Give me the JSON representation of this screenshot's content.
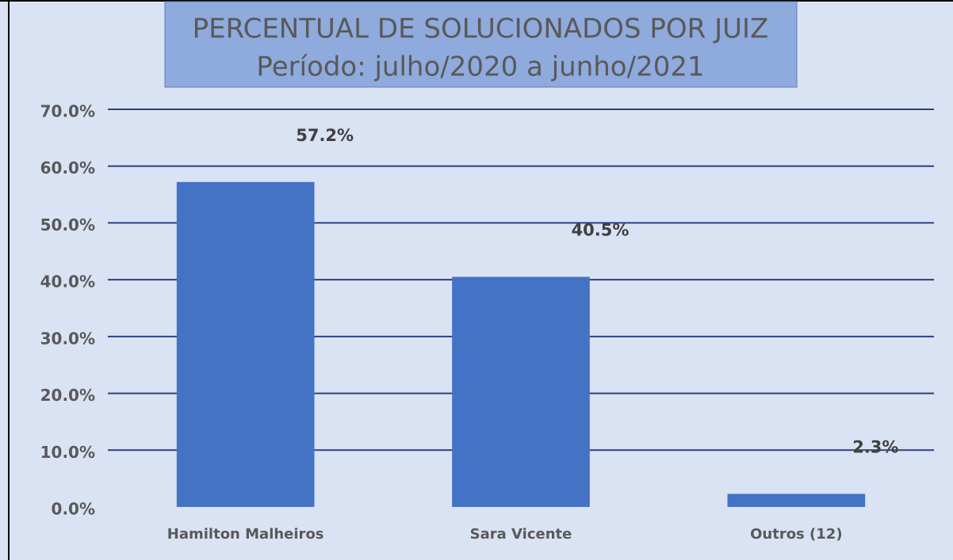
{
  "chart_data": {
    "type": "bar",
    "title": "PERCENTUAL DE SOLUCIONADOS POR JUIZ",
    "subtitle": "Período: julho/2020 a junho/2021",
    "categories": [
      "Hamilton Malheiros",
      "Sara Vicente",
      "Outros (12)"
    ],
    "values": [
      57.2,
      40.5,
      2.3
    ],
    "value_labels": [
      "57.2%",
      "40.5%",
      "2.3%"
    ],
    "color": "#4472c4",
    "ylim": [
      0,
      70
    ],
    "yticks": [
      {
        "value": 0,
        "label": "0.0%"
      },
      {
        "value": 10,
        "label": "10.0%"
      },
      {
        "value": 20,
        "label": "20.0%"
      },
      {
        "value": 30,
        "label": "30.0%"
      },
      {
        "value": 40,
        "label": "40.0%"
      },
      {
        "value": 50,
        "label": "50.0%"
      },
      {
        "value": 60,
        "label": "60.0%"
      },
      {
        "value": 70,
        "label": "70.0%"
      }
    ],
    "grid": true
  }
}
